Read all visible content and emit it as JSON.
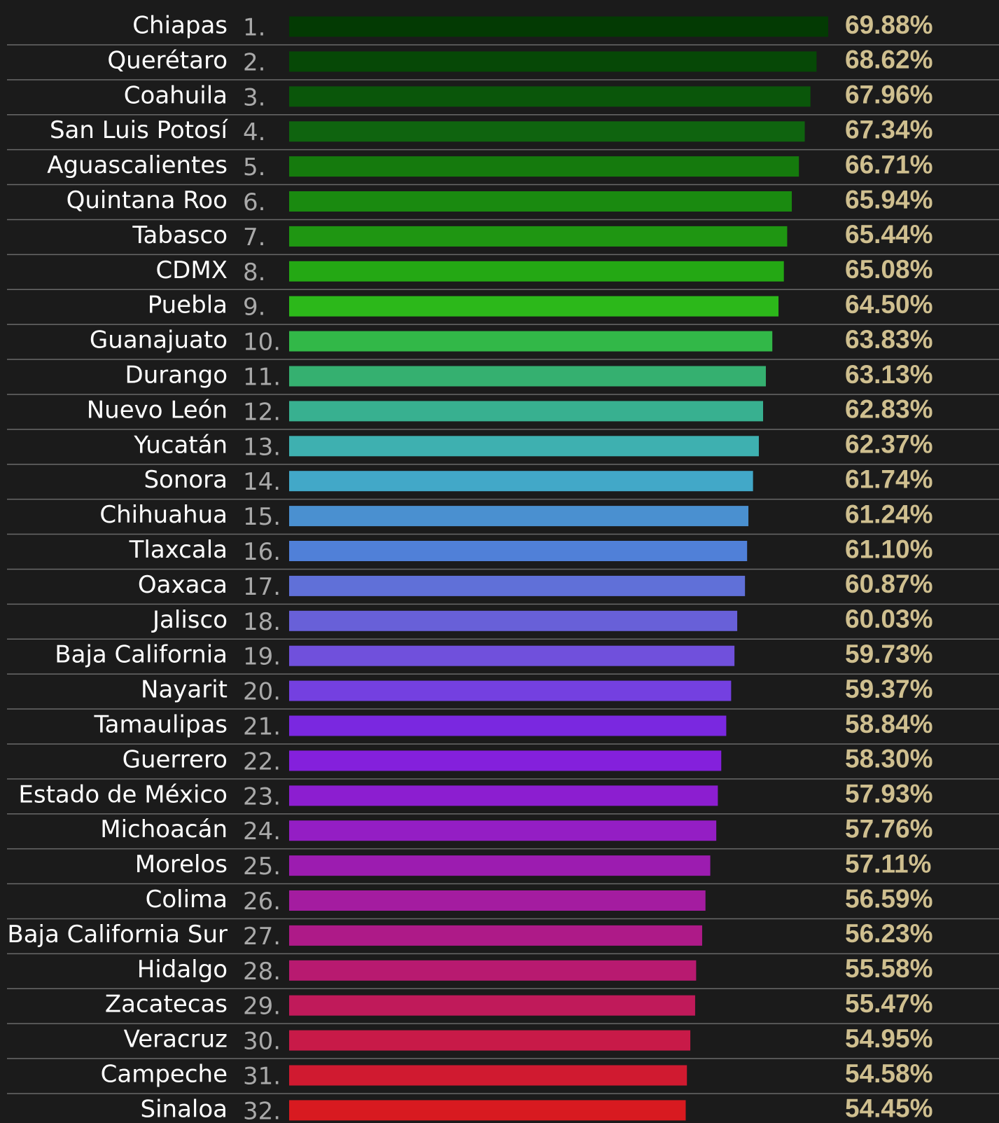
{
  "chart_data": {
    "type": "bar",
    "orientation": "horizontal",
    "categories": [
      "Chiapas",
      "Querétaro",
      "Coahuila",
      "San Luis Potosí",
      "Aguascalientes",
      "Quintana Roo",
      "Tabasco",
      "CDMX",
      "Puebla",
      "Guanajuato",
      "Durango",
      "Nuevo León",
      "Yucatán",
      "Sonora",
      "Chihuahua",
      "Tlaxcala",
      "Oaxaca",
      "Jalisco",
      "Baja California",
      "Nayarit",
      "Tamaulipas",
      "Guerrero",
      "Estado de México",
      "Michoacán",
      "Morelos",
      "Colima",
      "Baja California Sur",
      "Hidalgo",
      "Zacatecas",
      "Veracruz",
      "Campeche",
      "Sinaloa"
    ],
    "ranks": [
      "1.",
      "2.",
      "3.",
      "4.",
      "5.",
      "6.",
      "7.",
      "8.",
      "9.",
      "10.",
      "11.",
      "12.",
      "13.",
      "14.",
      "15.",
      "16.",
      "17.",
      "18.",
      "19.",
      "20.",
      "21.",
      "22.",
      "23.",
      "24.",
      "25.",
      "26.",
      "27.",
      "28.",
      "29.",
      "30.",
      "31.",
      "32."
    ],
    "values": [
      69.88,
      68.62,
      67.96,
      67.34,
      66.71,
      65.94,
      65.44,
      65.08,
      64.5,
      63.83,
      63.13,
      62.83,
      62.37,
      61.74,
      61.24,
      61.1,
      60.87,
      60.03,
      59.73,
      59.37,
      58.84,
      58.3,
      57.93,
      57.76,
      57.11,
      56.59,
      56.23,
      55.58,
      55.47,
      54.95,
      54.58,
      54.45
    ],
    "value_labels": [
      "69.88%",
      "68.62%",
      "67.96%",
      "67.34%",
      "66.71%",
      "65.94%",
      "65.44%",
      "65.08%",
      "64.50%",
      "63.83%",
      "63.13%",
      "62.83%",
      "62.37%",
      "61.74%",
      "61.24%",
      "61.10%",
      "60.87%",
      "60.03%",
      "59.73%",
      "59.37%",
      "58.84%",
      "58.30%",
      "57.93%",
      "57.76%",
      "57.11%",
      "56.59%",
      "56.23%",
      "55.58%",
      "55.47%",
      "54.95%",
      "54.58%",
      "54.45%"
    ],
    "colors": [
      "#033a03",
      "#064806",
      "#0a560a",
      "#0f640f",
      "#157a0d",
      "#1a8a10",
      "#1f9612",
      "#24a814",
      "#2cb81a",
      "#32b848",
      "#35b070",
      "#38b090",
      "#3eb0b0",
      "#42a8c8",
      "#4a90d0",
      "#5080d8",
      "#6070d8",
      "#6860d8",
      "#7050dc",
      "#7440e0",
      "#7a28e0",
      "#8420dc",
      "#8c1ed0",
      "#941ec4",
      "#9c1cb0",
      "#a41ca0",
      "#ae1a88",
      "#b81a70",
      "#c01a5a",
      "#c81a48",
      "#d01a30",
      "#d81a20"
    ],
    "xlim": [
      11.5,
      69.88
    ]
  }
}
